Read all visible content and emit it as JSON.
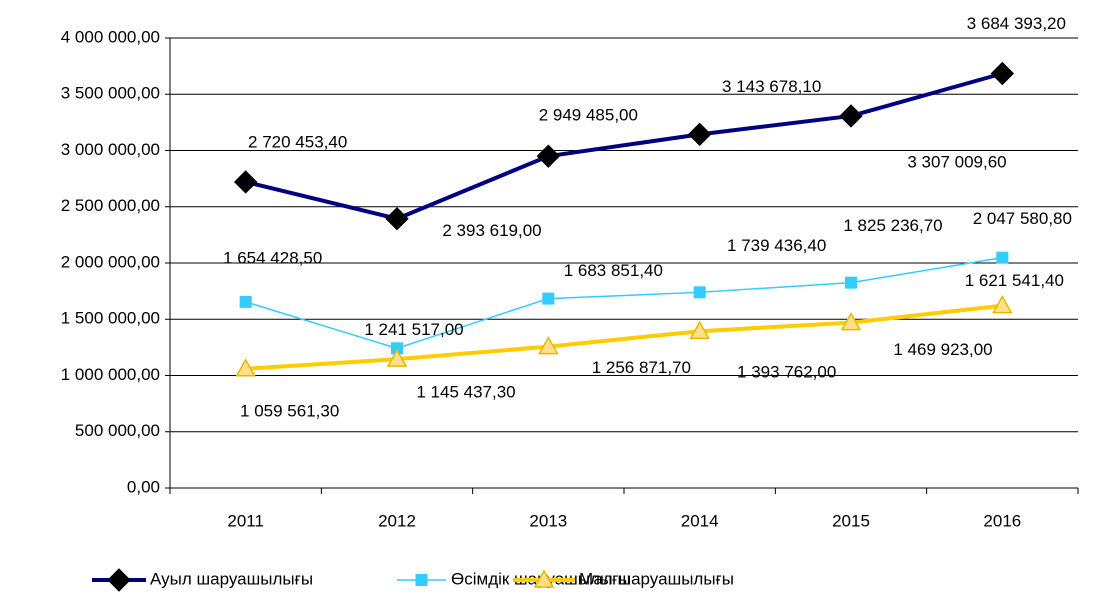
{
  "chart_data": {
    "type": "line",
    "categories": [
      "2011",
      "2012",
      "2013",
      "2014",
      "2015",
      "2016"
    ],
    "series": [
      {
        "name": "Ауыл шаруашылығы",
        "color": "#000080",
        "marker": "diamond",
        "marker_color": "#000000",
        "values": [
          2720453.4,
          2393619.0,
          2949485.0,
          3143678.1,
          3307009.6,
          3684393.2
        ],
        "value_labels": [
          "2 720 453,40",
          "2 393 619,00",
          "2 949 485,00",
          "3 143 678,10",
          "3 307 009,60",
          "3 684 393,20"
        ]
      },
      {
        "name": "Өсімдік шаруашылығы",
        "color": "#33ccff",
        "marker": "square",
        "marker_color": "#33ccff",
        "values": [
          1654428.5,
          1241517.0,
          1683851.4,
          1739436.4,
          1825236.7,
          2047580.8
        ],
        "value_labels": [
          "1 654 428,50",
          "1 241 517,00",
          "1 683 851,40",
          "1 739 436,40",
          "1 825 236,70",
          "2 047 580,80"
        ]
      },
      {
        "name": "Мал шаруашылығы",
        "color": "#ffcc00",
        "marker": "triangle",
        "marker_color": "#ffe08a",
        "values": [
          1059561.3,
          1145437.3,
          1256871.7,
          1393762.0,
          1469923.0,
          1621541.4
        ],
        "value_labels": [
          "1 059 561,30",
          "1 145 437,30",
          "1 256 871,70",
          "1 393 762,00",
          "1 469 923,00",
          "1 621 541,40"
        ]
      }
    ],
    "ylim": [
      0,
      4000000
    ],
    "yticks": [
      {
        "value": 0,
        "label": "0,00"
      },
      {
        "value": 500000,
        "label": "500 000,00"
      },
      {
        "value": 1000000,
        "label": "1 000 000,00"
      },
      {
        "value": 1500000,
        "label": "1 500 000,00"
      },
      {
        "value": 2000000,
        "label": "2 000 000,00"
      },
      {
        "value": 2500000,
        "label": "2 500 000,00"
      },
      {
        "value": 3000000,
        "label": "3 000 000,00"
      },
      {
        "value": 3500000,
        "label": "3 500 000,00"
      },
      {
        "value": 4000000,
        "label": "4 000 000,00"
      }
    ],
    "grid": true
  }
}
